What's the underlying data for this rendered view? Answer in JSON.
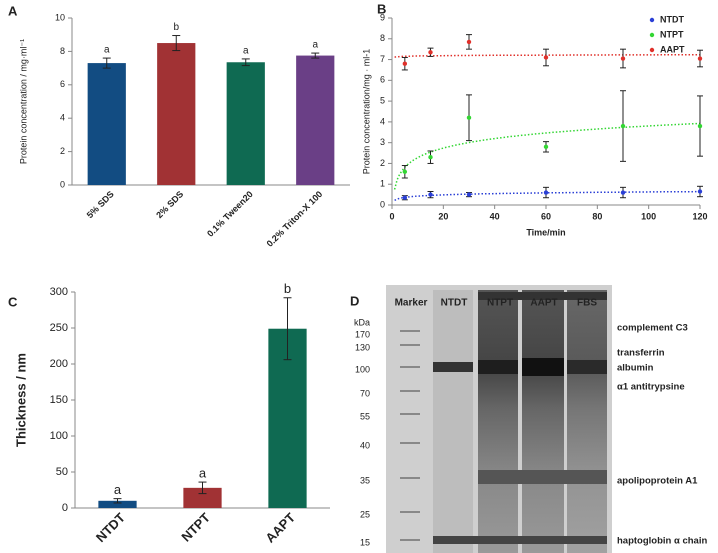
{
  "chart_data": [
    {
      "type": "bar",
      "label": "A",
      "y_label": "Protein concentration / mg·ml⁻¹",
      "categories": [
        "5% SDS",
        "2% SDS",
        "0.1% Tween20",
        "0.2% Triton-X 100"
      ],
      "values": [
        7.3,
        8.5,
        7.35,
        7.75
      ],
      "errors": [
        0.3,
        0.45,
        0.2,
        0.15
      ],
      "annotations": [
        "a",
        "b",
        "a",
        "a"
      ],
      "colors": [
        "#124c82",
        "#a13234",
        "#0f6a52",
        "#6a3f86"
      ],
      "ylim": [
        0,
        10
      ],
      "yticks": [
        0,
        2,
        4,
        6,
        8,
        10
      ]
    },
    {
      "type": "scatter",
      "label": "B",
      "x_label": "Time/min",
      "y_label": "Protein concentration/mg · ml-1",
      "x": [
        5,
        15,
        30,
        60,
        90,
        120
      ],
      "series": [
        {
          "name": "NTDT",
          "color": "#2a3fd6",
          "values": [
            0.35,
            0.5,
            0.5,
            0.6,
            0.6,
            0.65
          ],
          "errors": [
            0.1,
            0.15,
            0.1,
            0.25,
            0.25,
            0.25
          ]
        },
        {
          "name": "NTPT",
          "color": "#33d633",
          "values": [
            1.6,
            2.3,
            4.2,
            2.8,
            3.8,
            3.8
          ],
          "errors": [
            0.3,
            0.3,
            1.1,
            0.25,
            1.7,
            1.45
          ]
        },
        {
          "name": "AAPT",
          "color": "#e0302a",
          "values": [
            6.8,
            7.35,
            7.85,
            7.1,
            7.05,
            7.05
          ],
          "errors": [
            0.3,
            0.2,
            0.35,
            0.4,
            0.45,
            0.4
          ]
        }
      ],
      "xlim": [
        0,
        120
      ],
      "xticks": [
        0,
        20,
        40,
        60,
        80,
        100,
        120
      ],
      "ylim": [
        0,
        9
      ],
      "yticks": [
        0,
        1,
        2,
        3,
        4,
        5,
        6,
        7,
        8,
        9
      ],
      "legend": "upper right",
      "trendline": "logarithmic"
    },
    {
      "type": "bar",
      "label": "C",
      "y_label": "Thickness / nm",
      "categories": [
        "NTDT",
        "NTPT",
        "AAPT"
      ],
      "values": [
        10,
        28,
        249
      ],
      "errors": [
        3,
        8,
        43
      ],
      "annotations": [
        "a",
        "a",
        "b"
      ],
      "colors": [
        "#124c82",
        "#a13234",
        "#0f6a52"
      ],
      "ylim": [
        0,
        300
      ],
      "yticks": [
        0,
        50,
        100,
        150,
        200,
        250,
        300
      ]
    }
  ],
  "gel": {
    "label": "D",
    "columns": [
      "Marker",
      "NTDT",
      "NTPT",
      "AAPT",
      "FBS"
    ],
    "unit": "kDa",
    "markers": [
      170,
      130,
      100,
      70,
      55,
      40,
      35,
      25,
      15
    ],
    "bands": [
      "complement C3",
      "transferrin",
      "albumin",
      "α1 antitrypsine",
      "apolipoprotein A1",
      "haptoglobin α chain"
    ]
  }
}
